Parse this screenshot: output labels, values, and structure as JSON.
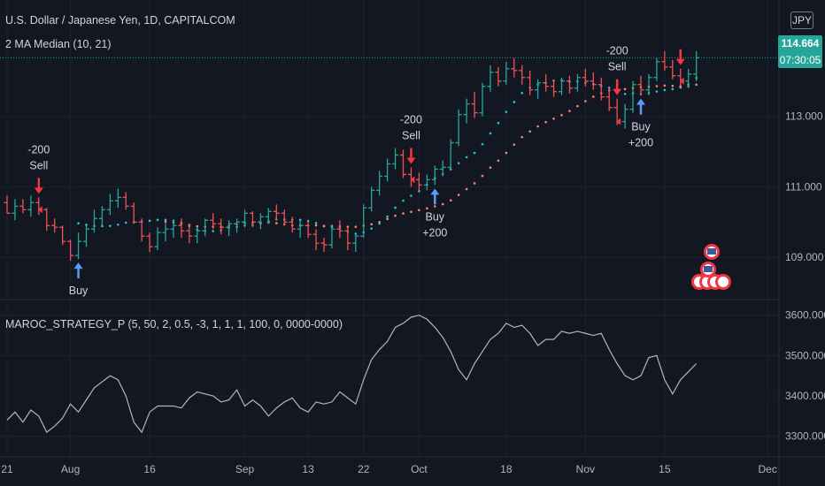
{
  "header": {
    "symbol_title": "U.S. Dollar / Japanese Yen, 1D, CAPITALCOM",
    "indicator_title": "2 MA Median (10, 21)",
    "oscillator_title": "MAROC_STRATEGY_P (5, 50, 2, 0.5, -3, 1, 1, 1, 100, 0, 0000-0000)",
    "currency": "JPY"
  },
  "price_tags": {
    "last_price": "114.664",
    "countdown": "07:30:05"
  },
  "colors": {
    "up": "#26a69a",
    "down": "#ef5350",
    "sell": "#f23645",
    "buy": "#5b9cf6",
    "osc_line": "#b2b5be",
    "background": "#131722",
    "grid": "#1e222d"
  },
  "chart_data": [
    {
      "type": "ohlc",
      "name": "price",
      "yaxis_ticks": [
        "113.000",
        "111.000",
        "109.000"
      ],
      "ylim": [
        107.9,
        116.2
      ],
      "x": [
        "Jul 21",
        "Jul 22",
        "Jul 23",
        "Jul 26",
        "Jul 27",
        "Jul 28",
        "Jul 29",
        "Jul 30",
        "Aug 2",
        "Aug 3",
        "Aug 4",
        "Aug 5",
        "Aug 6",
        "Aug 9",
        "Aug 10",
        "Aug 11",
        "Aug 12",
        "Aug 13",
        "Aug 16",
        "Aug 17",
        "Aug 18",
        "Aug 19",
        "Aug 20",
        "Aug 23",
        "Aug 24",
        "Aug 25",
        "Aug 26",
        "Aug 27",
        "Aug 30",
        "Aug 31",
        "Sep 1",
        "Sep 2",
        "Sep 3",
        "Sep 6",
        "Sep 7",
        "Sep 8",
        "Sep 9",
        "Sep 10",
        "Sep 13",
        "Sep 14",
        "Sep 15",
        "Sep 16",
        "Sep 17",
        "Sep 20",
        "Sep 21",
        "Sep 22",
        "Sep 23",
        "Sep 24",
        "Sep 27",
        "Sep 28",
        "Sep 29",
        "Sep 30",
        "Oct 1",
        "Oct 4",
        "Oct 5",
        "Oct 6",
        "Oct 7",
        "Oct 8",
        "Oct 11",
        "Oct 12",
        "Oct 13",
        "Oct 14",
        "Oct 15",
        "Oct 18",
        "Oct 19",
        "Oct 20",
        "Oct 21",
        "Oct 22",
        "Oct 25",
        "Oct 26",
        "Oct 27",
        "Oct 28",
        "Oct 29",
        "Nov 1",
        "Nov 2",
        "Nov 3",
        "Nov 4",
        "Nov 5",
        "Nov 8",
        "Nov 9",
        "Nov 10",
        "Nov 11",
        "Nov 12",
        "Nov 15",
        "Nov 16",
        "Nov 17",
        "Nov 18",
        "Nov 19"
      ],
      "ohlc": [
        [
          110.55,
          110.75,
          110.25,
          110.25
        ],
        [
          110.25,
          110.65,
          110.05,
          110.45
        ],
        [
          110.45,
          110.65,
          110.25,
          110.35
        ],
        [
          110.35,
          110.75,
          110.15,
          110.55
        ],
        [
          110.55,
          110.7,
          110.2,
          110.35
        ],
        [
          110.35,
          110.4,
          109.75,
          109.9
        ],
        [
          109.9,
          110.1,
          109.7,
          109.85
        ],
        [
          109.85,
          109.9,
          109.35,
          109.45
        ],
        [
          109.45,
          109.5,
          108.9,
          109.05
        ],
        [
          109.05,
          109.7,
          108.95,
          109.45
        ],
        [
          109.45,
          109.9,
          109.3,
          109.8
        ],
        [
          109.8,
          110.35,
          109.7,
          110.1
        ],
        [
          110.1,
          110.45,
          109.9,
          110.35
        ],
        [
          110.35,
          110.8,
          110.2,
          110.6
        ],
        [
          110.6,
          110.95,
          110.4,
          110.7
        ],
        [
          110.7,
          110.85,
          110.35,
          110.45
        ],
        [
          110.45,
          110.55,
          109.95,
          110.0
        ],
        [
          110.0,
          110.1,
          109.45,
          109.6
        ],
        [
          109.6,
          109.7,
          109.15,
          109.3
        ],
        [
          109.3,
          109.85,
          109.2,
          109.7
        ],
        [
          109.7,
          109.95,
          109.45,
          109.8
        ],
        [
          109.8,
          110.05,
          109.55,
          109.9
        ],
        [
          109.9,
          110.1,
          109.55,
          109.75
        ],
        [
          109.75,
          109.95,
          109.4,
          109.6
        ],
        [
          109.6,
          109.85,
          109.4,
          109.75
        ],
        [
          109.75,
          110.1,
          109.6,
          110.05
        ],
        [
          110.05,
          110.25,
          109.8,
          109.95
        ],
        [
          109.95,
          110.1,
          109.65,
          109.85
        ],
        [
          109.85,
          110.05,
          109.6,
          109.95
        ],
        [
          109.95,
          110.1,
          109.7,
          110.0
        ],
        [
          110.0,
          110.35,
          109.85,
          110.25
        ],
        [
          110.25,
          110.3,
          109.85,
          110.0
        ],
        [
          110.0,
          110.25,
          109.8,
          110.15
        ],
        [
          110.15,
          110.4,
          109.95,
          110.3
        ],
        [
          110.3,
          110.5,
          110.05,
          110.25
        ],
        [
          110.25,
          110.35,
          109.9,
          110.0
        ],
        [
          110.0,
          110.15,
          109.7,
          109.8
        ],
        [
          109.8,
          110.05,
          109.55,
          109.9
        ],
        [
          109.9,
          110.0,
          109.55,
          109.65
        ],
        [
          109.65,
          109.8,
          109.2,
          109.4
        ],
        [
          109.4,
          109.55,
          109.15,
          109.35
        ],
        [
          109.35,
          109.9,
          109.25,
          109.8
        ],
        [
          109.8,
          110.05,
          109.55,
          109.75
        ],
        [
          109.75,
          109.85,
          109.2,
          109.4
        ],
        [
          109.4,
          109.7,
          109.15,
          109.6
        ],
        [
          109.6,
          110.5,
          109.55,
          110.4
        ],
        [
          110.4,
          111.0,
          110.3,
          110.9
        ],
        [
          110.9,
          111.45,
          110.75,
          111.3
        ],
        [
          111.3,
          111.8,
          111.15,
          111.65
        ],
        [
          111.65,
          112.1,
          111.5,
          111.9
        ],
        [
          111.9,
          112.05,
          111.25,
          111.35
        ],
        [
          111.35,
          111.55,
          111.0,
          111.2
        ],
        [
          111.2,
          111.4,
          110.9,
          111.05
        ],
        [
          111.05,
          111.35,
          110.9,
          111.2
        ],
        [
          111.2,
          111.6,
          111.05,
          111.5
        ],
        [
          111.5,
          111.75,
          111.3,
          111.55
        ],
        [
          111.55,
          112.35,
          111.5,
          112.25
        ],
        [
          112.25,
          113.2,
          112.15,
          113.05
        ],
        [
          113.05,
          113.5,
          112.8,
          113.35
        ],
        [
          113.35,
          113.7,
          112.95,
          113.1
        ],
        [
          113.1,
          113.95,
          113.0,
          113.85
        ],
        [
          113.85,
          114.45,
          113.7,
          114.25
        ],
        [
          114.25,
          114.4,
          113.85,
          114.0
        ],
        [
          114.0,
          114.55,
          113.9,
          114.35
        ],
        [
          114.35,
          114.65,
          114.1,
          114.3
        ],
        [
          114.3,
          114.45,
          113.9,
          114.1
        ],
        [
          114.1,
          114.3,
          113.6,
          113.75
        ],
        [
          113.75,
          114.05,
          113.5,
          113.95
        ],
        [
          113.95,
          114.2,
          113.7,
          113.85
        ],
        [
          113.85,
          114.05,
          113.55,
          113.7
        ],
        [
          113.7,
          114.1,
          113.6,
          114.0
        ],
        [
          114.0,
          114.15,
          113.65,
          113.8
        ],
        [
          113.8,
          114.2,
          113.7,
          114.1
        ],
        [
          114.1,
          114.35,
          113.85,
          114.0
        ],
        [
          114.0,
          114.25,
          113.75,
          113.9
        ],
        [
          113.9,
          114.1,
          113.45,
          113.55
        ],
        [
          113.55,
          113.8,
          113.15,
          113.25
        ],
        [
          113.25,
          113.5,
          112.75,
          112.85
        ],
        [
          112.85,
          113.35,
          112.65,
          113.2
        ],
        [
          113.2,
          114.0,
          113.1,
          113.9
        ],
        [
          113.9,
          114.15,
          113.6,
          113.75
        ],
        [
          113.75,
          114.2,
          113.6,
          114.1
        ],
        [
          114.1,
          114.65,
          114.0,
          114.55
        ],
        [
          114.55,
          114.85,
          114.3,
          114.4
        ],
        [
          114.4,
          114.6,
          114.05,
          114.15
        ],
        [
          114.15,
          114.35,
          113.85,
          114.0
        ],
        [
          114.0,
          114.35,
          113.8,
          114.2
        ],
        [
          114.2,
          114.85,
          114.0,
          114.66
        ]
      ],
      "signals": [
        {
          "at": "Jul 27",
          "kind": "sell",
          "line1": "-200",
          "line2": "Sell"
        },
        {
          "at": "Aug 3",
          "kind": "buy",
          "line1": "Buy",
          "line2": ""
        },
        {
          "at": "Sep 30",
          "kind": "sell",
          "line1": "-200",
          "line2": "Sell"
        },
        {
          "at": "Oct 5",
          "kind": "buy",
          "line1": "Buy",
          "line2": "+200"
        },
        {
          "at": "Nov 5",
          "kind": "sell",
          "line1": "-200",
          "line2": "Sell"
        },
        {
          "at": "Nov 10",
          "kind": "buy",
          "line1": "Buy",
          "line2": "+200"
        },
        {
          "at": "Nov 17",
          "kind": "sell",
          "line1": "",
          "line2": ""
        }
      ]
    },
    {
      "type": "line",
      "name": "MAROC_STRATEGY_P",
      "yaxis_ticks": [
        "3600.000",
        "3500.000",
        "3400.000",
        "3300.000"
      ],
      "ylim": [
        3260,
        3630
      ],
      "values": [
        3340,
        3360,
        3335,
        3365,
        3350,
        3310,
        3325,
        3345,
        3380,
        3360,
        3390,
        3420,
        3435,
        3450,
        3440,
        3400,
        3335,
        3310,
        3360,
        3375,
        3375,
        3375,
        3370,
        3395,
        3410,
        3405,
        3400,
        3385,
        3390,
        3415,
        3375,
        3390,
        3375,
        3350,
        3370,
        3385,
        3395,
        3370,
        3360,
        3385,
        3380,
        3385,
        3410,
        3395,
        3380,
        3440,
        3490,
        3515,
        3535,
        3570,
        3580,
        3595,
        3600,
        3590,
        3570,
        3545,
        3510,
        3465,
        3440,
        3480,
        3510,
        3540,
        3555,
        3580,
        3570,
        3575,
        3555,
        3525,
        3540,
        3540,
        3560,
        3555,
        3560,
        3555,
        3550,
        3555,
        3515,
        3480,
        3450,
        3440,
        3450,
        3495,
        3500,
        3440,
        3405,
        3440,
        3460,
        3480
      ]
    }
  ],
  "time_axis": {
    "labels": [
      "21",
      "Aug",
      "16",
      "Sep",
      "13",
      "22",
      "Oct",
      "18",
      "Nov",
      "15",
      "Dec"
    ],
    "label_dates": [
      "Jul 21",
      "Aug 2",
      "Aug 16",
      "Sep 1",
      "Sep 13",
      "Sep 22",
      "Oct 1",
      "Oct 18",
      "Nov 1",
      "Nov 15",
      "Dec 1"
    ]
  }
}
